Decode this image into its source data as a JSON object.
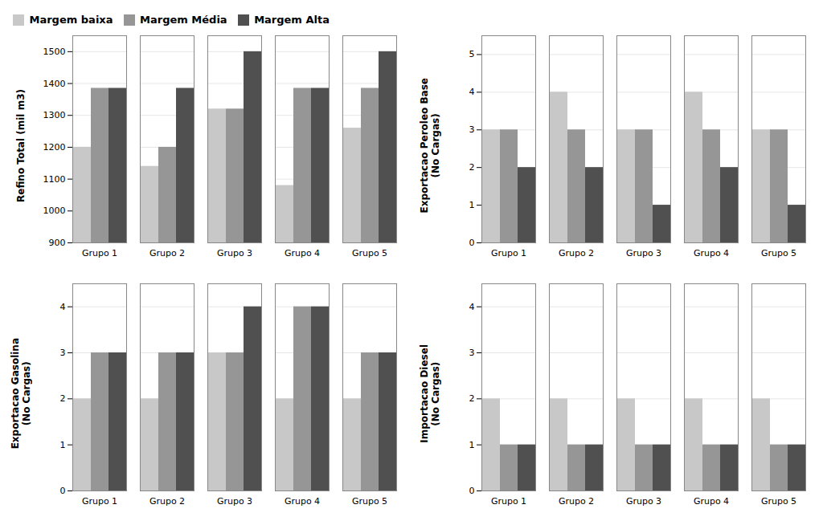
{
  "chart_data": [
    {
      "type": "bar",
      "ylabel": "Refino Total (mil m3)",
      "categories": [
        "Grupo 1",
        "Grupo 2",
        "Grupo 3",
        "Grupo 4",
        "Grupo 5"
      ],
      "series": [
        {
          "name": "Margem baixa",
          "color": "#c8c8c8",
          "values": [
            1200,
            1140,
            1320,
            1080,
            1260
          ]
        },
        {
          "name": "Margem Média",
          "color": "#969696",
          "values": [
            1385,
            1200,
            1320,
            1385,
            1385
          ]
        },
        {
          "name": "Margem Alta",
          "color": "#505050",
          "values": [
            1385,
            1385,
            1500,
            1385,
            1500
          ]
        }
      ],
      "ylim": [
        900,
        1550
      ],
      "yticks": [
        900,
        1000,
        1100,
        1200,
        1300,
        1400,
        1500
      ],
      "grid": true,
      "legend": "upper left"
    },
    {
      "type": "bar",
      "ylabel": "Exportacao Peroleo Base\n(No Cargas)",
      "categories": [
        "Grupo 1",
        "Grupo 2",
        "Grupo 3",
        "Grupo 4",
        "Grupo 5"
      ],
      "series": [
        {
          "name": "Margem baixa",
          "color": "#c8c8c8",
          "values": [
            3,
            4,
            3,
            4,
            3
          ]
        },
        {
          "name": "Margem Média",
          "color": "#969696",
          "values": [
            3,
            3,
            3,
            3,
            3
          ]
        },
        {
          "name": "Margem Alta",
          "color": "#505050",
          "values": [
            2,
            2,
            1,
            2,
            1
          ]
        }
      ],
      "ylim": [
        0,
        5.5
      ],
      "yticks": [
        0,
        1,
        2,
        3,
        4,
        5
      ],
      "grid": true
    },
    {
      "type": "bar",
      "ylabel": "Exportacao Gasolina\n(No Cargas)",
      "categories": [
        "Grupo 1",
        "Grupo 2",
        "Grupo 3",
        "Grupo 4",
        "Grupo 5"
      ],
      "series": [
        {
          "name": "Margem baixa",
          "color": "#c8c8c8",
          "values": [
            2,
            2,
            3,
            2,
            2
          ]
        },
        {
          "name": "Margem Média",
          "color": "#969696",
          "values": [
            3,
            3,
            3,
            4,
            3
          ]
        },
        {
          "name": "Margem Alta",
          "color": "#505050",
          "values": [
            3,
            3,
            4,
            4,
            3
          ]
        }
      ],
      "ylim": [
        0,
        4.5
      ],
      "yticks": [
        0,
        1,
        2,
        3,
        4
      ],
      "grid": true
    },
    {
      "type": "bar",
      "ylabel": "Importacao Diesel\n(No Cargas)",
      "categories": [
        "Grupo 1",
        "Grupo 2",
        "Grupo 3",
        "Grupo 4",
        "Grupo 5"
      ],
      "series": [
        {
          "name": "Margem baixa",
          "color": "#c8c8c8",
          "values": [
            2,
            2,
            2,
            2,
            2
          ]
        },
        {
          "name": "Margem Média",
          "color": "#969696",
          "values": [
            1,
            1,
            1,
            1,
            1
          ]
        },
        {
          "name": "Margem Alta",
          "color": "#505050",
          "values": [
            1,
            1,
            1,
            1,
            1
          ]
        }
      ],
      "ylim": [
        0,
        4.5
      ],
      "yticks": [
        0,
        1,
        2,
        3,
        4
      ],
      "grid": true
    }
  ]
}
